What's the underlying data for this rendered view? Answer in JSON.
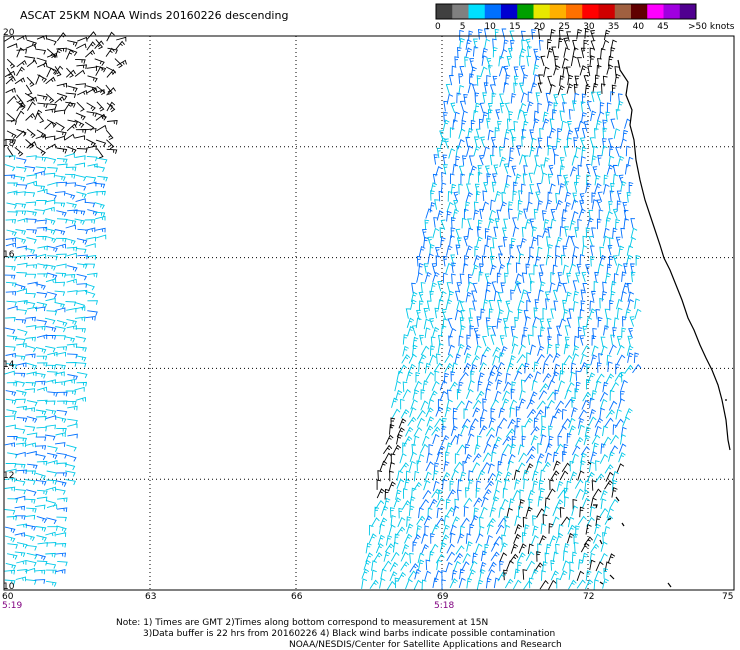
{
  "title": "ASCAT 25KM NOAA Winds 20160226 descending",
  "scale": {
    "labels": [
      "0",
      "5",
      "10",
      "15",
      "20",
      "25",
      "30",
      "35",
      "40",
      "45"
    ],
    "suffix": ">50 knots",
    "colors": [
      "#404040",
      "#808080",
      "#00e0ff",
      "#0070ff",
      "#0000d0",
      "#00a000",
      "#e8e800",
      "#ffb000",
      "#ff7000",
      "#ff0000",
      "#d00000",
      "#a06040",
      "#600000",
      "#ff00ff",
      "#a000e0",
      "#500090"
    ]
  },
  "map": {
    "lon_range": [
      60,
      75
    ],
    "lat_range": [
      10,
      20
    ],
    "lon_ticks": [
      "60",
      "63",
      "66",
      "69",
      "72",
      "75"
    ],
    "lat_ticks": [
      "20",
      "18",
      "16",
      "14",
      "12",
      "10"
    ],
    "gridlines": "dotted",
    "swath_times": [
      {
        "lon": 60,
        "time": "5:19"
      },
      {
        "lon": 69,
        "time": "5:18"
      }
    ],
    "barb_colors": {
      "light": "#00c8e8",
      "medium": "#0070ff",
      "contaminated": "#000000"
    }
  },
  "notes": {
    "line1": "Note: 1) Times are GMT 2)Times along bottom correspond to measurement at 15N",
    "line2": "3)Data buffer is 22 hrs from 20160226 4) Black wind barbs indicate possible contamination",
    "line3": "NOAA/NESDIS/Center for Satellite Applications and Research"
  }
}
